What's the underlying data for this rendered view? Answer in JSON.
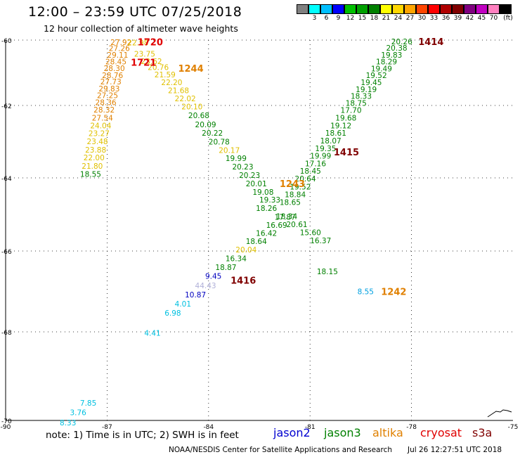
{
  "header": {
    "title": "12:00 – 23:59 UTC 07/25/2018",
    "subtitle": "12 hour collection of altimeter wave heights"
  },
  "colorbar": {
    "unit": "(ft)",
    "swatches": [
      "#808080",
      "#00ffff",
      "#00bfff",
      "#0000ff",
      "#00c000",
      "#00a000",
      "#008000",
      "#ffff00",
      "#ffd700",
      "#ffa500",
      "#ff4500",
      "#ff0000",
      "#b00000",
      "#800000",
      "#800080",
      "#c000c0",
      "#ff80c0",
      "#000000"
    ],
    "labels": [
      "3",
      "6",
      "9",
      "12",
      "15",
      "18",
      "21",
      "24",
      "27",
      "30",
      "33",
      "36",
      "39",
      "42",
      "45",
      "70"
    ]
  },
  "map": {
    "lat_ticks": [
      "-60",
      "-62",
      "-64",
      "-66",
      "-68",
      "-70"
    ],
    "lon_ticks": [
      "-90",
      "-87",
      "-84",
      "-81",
      "-78",
      "-75"
    ]
  },
  "labels": [
    {
      "t": "27.92",
      "c": "#e08000",
      "x": -86.9,
      "y": -60.06
    },
    {
      "t": "27.26",
      "c": "#e08000",
      "x": -86.95,
      "y": -60.25
    },
    {
      "t": "29.11",
      "c": "#e08000",
      "x": -87.0,
      "y": -60.45
    },
    {
      "t": "28.45",
      "c": "#e08000",
      "x": -87.05,
      "y": -60.66
    },
    {
      "t": "28.30",
      "c": "#e08000",
      "x": -87.1,
      "y": -60.86
    },
    {
      "t": "28.76",
      "c": "#e08000",
      "x": -87.15,
      "y": -61.07
    },
    {
      "t": "27.73",
      "c": "#e08000",
      "x": -87.2,
      "y": -61.27
    },
    {
      "t": "29.83",
      "c": "#e08000",
      "x": -87.25,
      "y": -61.48
    },
    {
      "t": "27.25",
      "c": "#e08000",
      "x": -87.3,
      "y": -61.69
    },
    {
      "t": "28.36",
      "c": "#e08000",
      "x": -87.35,
      "y": -61.9
    },
    {
      "t": "28.32",
      "c": "#e08000",
      "x": -87.4,
      "y": -62.12
    },
    {
      "t": "27.54",
      "c": "#e08000",
      "x": -87.45,
      "y": -62.34
    },
    {
      "t": "24.04",
      "c": "#e0c000",
      "x": -87.5,
      "y": -62.55
    },
    {
      "t": "23.27",
      "c": "#e0c000",
      "x": -87.55,
      "y": -62.77
    },
    {
      "t": "23.48",
      "c": "#e0c000",
      "x": -87.6,
      "y": -62.99
    },
    {
      "t": "23.88",
      "c": "#e0c000",
      "x": -87.65,
      "y": -63.22
    },
    {
      "t": "22.00",
      "c": "#e0c000",
      "x": -87.7,
      "y": -63.44
    },
    {
      "t": "21.80",
      "c": "#e0c000",
      "x": -87.75,
      "y": -63.67
    },
    {
      "t": "18.55",
      "c": "#008000",
      "x": -87.8,
      "y": -63.89
    },
    {
      "t": "22.98",
      "c": "#e0c000",
      "x": -86.4,
      "y": -60.08
    },
    {
      "t": "23.75",
      "c": "#e0c000",
      "x": -86.2,
      "y": -60.42
    },
    {
      "t": "23.62",
      "c": "#e0c000",
      "x": -86.0,
      "y": -60.64
    },
    {
      "t": "20.76",
      "c": "#e0c000",
      "x": -85.8,
      "y": -60.83
    },
    {
      "t": "21.59",
      "c": "#e0c000",
      "x": -85.6,
      "y": -61.05
    },
    {
      "t": "22.20",
      "c": "#e0c000",
      "x": -85.4,
      "y": -61.29
    },
    {
      "t": "21.68",
      "c": "#e0c000",
      "x": -85.2,
      "y": -61.54
    },
    {
      "t": "22.02",
      "c": "#e0c000",
      "x": -85.0,
      "y": -61.78
    },
    {
      "t": "20.10",
      "c": "#e0c000",
      "x": -84.8,
      "y": -62.03
    },
    {
      "t": "20.68",
      "c": "#008000",
      "x": -84.6,
      "y": -62.27
    },
    {
      "t": "20.09",
      "c": "#008000",
      "x": -84.4,
      "y": -62.52
    },
    {
      "t": "20.22",
      "c": "#008000",
      "x": -84.2,
      "y": -62.76
    },
    {
      "t": "20.78",
      "c": "#008000",
      "x": -84.0,
      "y": -63.0
    },
    {
      "t": "20.17",
      "c": "#e0c000",
      "x": -83.7,
      "y": -63.23
    },
    {
      "t": "19.99",
      "c": "#008000",
      "x": -83.5,
      "y": -63.46
    },
    {
      "t": "20.23",
      "c": "#008000",
      "x": -83.3,
      "y": -63.69
    },
    {
      "t": "20.23",
      "c": "#008000",
      "x": -83.1,
      "y": -63.92
    },
    {
      "t": "20.01",
      "c": "#008000",
      "x": -82.9,
      "y": -64.15
    },
    {
      "t": "19.08",
      "c": "#008000",
      "x": -82.7,
      "y": -64.38
    },
    {
      "t": "19.33",
      "c": "#008000",
      "x": -82.5,
      "y": -64.6
    },
    {
      "t": "18.26",
      "c": "#008000",
      "x": -82.6,
      "y": -64.83
    },
    {
      "t": "18.34",
      "c": "#008000",
      "x": -82.0,
      "y": -65.05
    },
    {
      "t": "20.61",
      "c": "#008000",
      "x": -81.7,
      "y": -65.27
    },
    {
      "t": "15.60",
      "c": "#008000",
      "x": -81.3,
      "y": -65.49
    },
    {
      "t": "16.37",
      "c": "#008000",
      "x": -81.0,
      "y": -65.71
    },
    {
      "t": "20.26",
      "c": "#008000",
      "x": -78.6,
      "y": -60.04
    },
    {
      "t": "20.38",
      "c": "#008000",
      "x": -78.75,
      "y": -60.24
    },
    {
      "t": "19.83",
      "c": "#008000",
      "x": -78.9,
      "y": -60.45
    },
    {
      "t": "18.29",
      "c": "#008000",
      "x": -79.05,
      "y": -60.66
    },
    {
      "t": "19.49",
      "c": "#008000",
      "x": -79.2,
      "y": -60.87
    },
    {
      "t": "19.52",
      "c": "#008000",
      "x": -79.35,
      "y": -61.08
    },
    {
      "t": "19.45",
      "c": "#008000",
      "x": -79.5,
      "y": -61.29
    },
    {
      "t": "19.19",
      "c": "#008000",
      "x": -79.65,
      "y": -61.5
    },
    {
      "t": "18.33",
      "c": "#008000",
      "x": -79.8,
      "y": -61.71
    },
    {
      "t": "18.75",
      "c": "#008000",
      "x": -79.95,
      "y": -61.92
    },
    {
      "t": "17.70",
      "c": "#008000",
      "x": -80.1,
      "y": -62.13
    },
    {
      "t": "19.68",
      "c": "#008000",
      "x": -80.25,
      "y": -62.34
    },
    {
      "t": "19.12",
      "c": "#008000",
      "x": -80.4,
      "y": -62.55
    },
    {
      "t": "18.61",
      "c": "#008000",
      "x": -80.55,
      "y": -62.76
    },
    {
      "t": "18.07",
      "c": "#008000",
      "x": -80.7,
      "y": -62.97
    },
    {
      "t": "19.35",
      "c": "#008000",
      "x": -80.85,
      "y": -63.18
    },
    {
      "t": "19.99",
      "c": "#008000",
      "x": -81.0,
      "y": -63.39
    },
    {
      "t": "17.16",
      "c": "#008000",
      "x": -81.15,
      "y": -63.6
    },
    {
      "t": "18.45",
      "c": "#008000",
      "x": -81.3,
      "y": -63.81
    },
    {
      "t": "20.64",
      "c": "#008000",
      "x": -81.45,
      "y": -64.02
    },
    {
      "t": "19.52",
      "c": "#008000",
      "x": -81.6,
      "y": -64.24
    },
    {
      "t": "18.84",
      "c": "#008000",
      "x": -81.75,
      "y": -64.45
    },
    {
      "t": "18.65",
      "c": "#008000",
      "x": -81.9,
      "y": -64.66
    },
    {
      "t": "17.87",
      "c": "#008000",
      "x": -82.05,
      "y": -65.07
    },
    {
      "t": "16.69",
      "c": "#008000",
      "x": -82.3,
      "y": -65.29
    },
    {
      "t": "16.42",
      "c": "#008000",
      "x": -82.6,
      "y": -65.51
    },
    {
      "t": "18.64",
      "c": "#008000",
      "x": -82.9,
      "y": -65.73
    },
    {
      "t": "20.04",
      "c": "#e0c000",
      "x": -83.2,
      "y": -65.96
    },
    {
      "t": "16.34",
      "c": "#008000",
      "x": -83.5,
      "y": -66.18
    },
    {
      "t": "18.87",
      "c": "#008000",
      "x": -83.8,
      "y": -66.4
    },
    {
      "t": "9.45",
      "c": "#0000c0",
      "x": -84.1,
      "y": -66.62
    },
    {
      "t": "44.43",
      "c": "#b0b0d8",
      "x": -84.4,
      "y": -66.85
    },
    {
      "t": "10.87",
      "c": "#0000c0",
      "x": -84.7,
      "y": -67.08
    },
    {
      "t": "4.01",
      "c": "#00c0e0",
      "x": -85.0,
      "y": -67.3
    },
    {
      "t": "6.98",
      "c": "#00c0e0",
      "x": -85.3,
      "y": -67.53
    },
    {
      "t": "4.41",
      "c": "#00c0e0",
      "x": -85.9,
      "y": -68.02
    },
    {
      "t": "7.85",
      "c": "#00c0e0",
      "x": -87.8,
      "y": -69.6
    },
    {
      "t": "3.76",
      "c": "#00c0e0",
      "x": -88.1,
      "y": -69.82
    },
    {
      "t": "8.33",
      "c": "#00c0e0",
      "x": -88.4,
      "y": -70.05
    },
    {
      "t": "18.15",
      "c": "#008000",
      "x": -80.8,
      "y": -66.5
    },
    {
      "t": "8.55",
      "c": "#00a0e0",
      "x": -79.6,
      "y": -67.0
    }
  ],
  "time_labels": [
    {
      "t": "1720",
      "c": "#e00000",
      "x": -86.1,
      "y": -60.05
    },
    {
      "t": "1721",
      "c": "#e00000",
      "x": -86.3,
      "y": -60.68
    },
    {
      "t": "1244",
      "c": "#e08000",
      "x": -84.9,
      "y": -60.86
    },
    {
      "t": "1414",
      "c": "#800000",
      "x": -77.8,
      "y": -60.04
    },
    {
      "t": "1415",
      "c": "#800000",
      "x": -80.3,
      "y": -63.28
    },
    {
      "t": "1243",
      "c": "#e08000",
      "x": -81.9,
      "y": -64.15
    },
    {
      "t": "1416",
      "c": "#800000",
      "x": -83.35,
      "y": -66.72
    },
    {
      "t": "1242",
      "c": "#e08000",
      "x": -78.9,
      "y": -67.0
    }
  ],
  "footer": {
    "note": "note: 1) Time is in UTC; 2) SWH is in feet",
    "legend": [
      {
        "name": "jason2",
        "color": "#0000d0"
      },
      {
        "name": "jason3",
        "color": "#008000"
      },
      {
        "name": "altika",
        "color": "#e08000"
      },
      {
        "name": "cryosat",
        "color": "#e00000"
      },
      {
        "name": "s3a",
        "color": "#800000"
      }
    ],
    "credit": "NOAA/NESDIS Center for Satellite Applications and Research",
    "timestamp": "Jul 26 12:27:51 UTC 2018"
  }
}
